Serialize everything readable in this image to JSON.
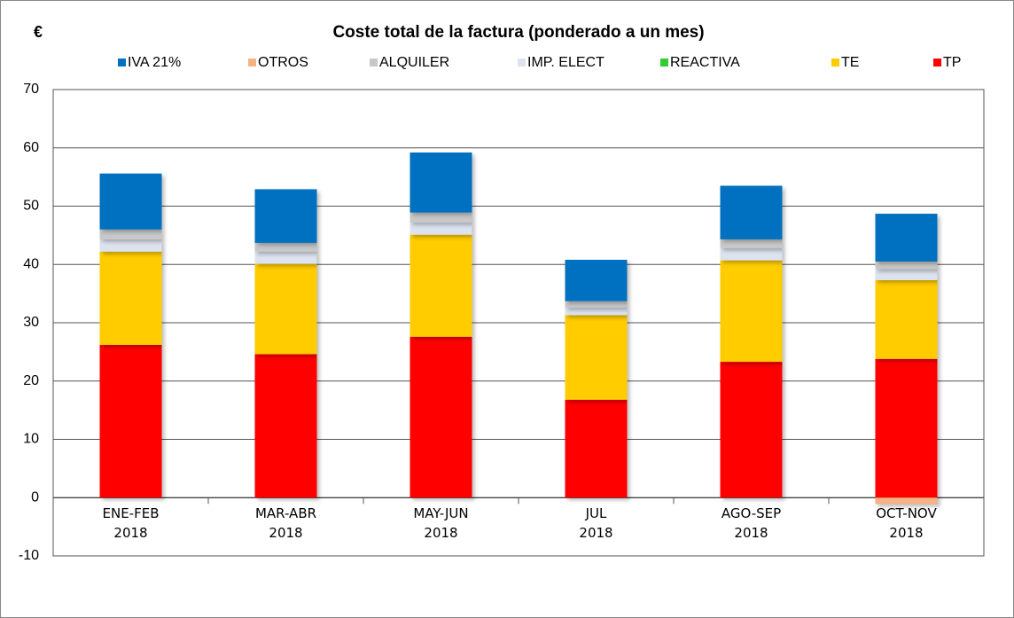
{
  "chart_data": {
    "type": "stacked_bar",
    "unit_label": "€",
    "title": "Coste total de la factura (ponderado a un mes)",
    "categories": [
      "ENE-FEB\n2018",
      "MAR-ABR\n2018",
      "MAY-JUN\n2018",
      "JUL\n2018",
      "AGO-SEP\n2018",
      "OCT-NOV\n2018"
    ],
    "series": [
      {
        "name": "IVA 21%",
        "color": "#0070c0",
        "values": [
          9.6,
          9.2,
          10.3,
          7.1,
          9.2,
          8.2
        ]
      },
      {
        "name": "OTROS",
        "color": "#f4b183",
        "values": [
          0,
          0,
          0,
          0,
          0,
          -1.1
        ]
      },
      {
        "name": "ALQUILER",
        "color": "#c8c8c8",
        "values": [
          1.7,
          1.5,
          1.7,
          1.1,
          1.5,
          1.3
        ]
      },
      {
        "name": "IMP. ELECT",
        "color": "#dce3ef",
        "values": [
          2.1,
          2.1,
          2.1,
          1.3,
          2.1,
          1.9
        ]
      },
      {
        "name": "REACTIVA",
        "color": "#33cc33",
        "values": [
          0,
          0,
          0,
          0,
          0,
          0
        ]
      },
      {
        "name": "TE",
        "color": "#ffcc00",
        "values": [
          16.0,
          15.5,
          17.5,
          14.5,
          17.4,
          13.5
        ]
      },
      {
        "name": "TP",
        "color": "#ff0000",
        "values": [
          26.2,
          24.6,
          27.6,
          16.8,
          23.3,
          23.8
        ]
      }
    ],
    "ylim": [
      -10,
      70
    ],
    "yticks": [
      -10,
      0,
      10,
      20,
      30,
      40,
      50,
      60,
      70
    ],
    "grid": true
  }
}
